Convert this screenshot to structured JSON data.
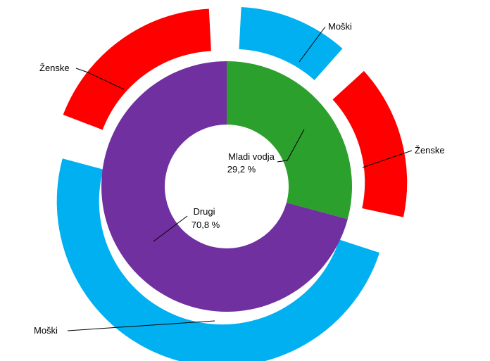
{
  "chart_data": {
    "type": "pie",
    "variant": "nested-donut",
    "inner": {
      "slices": [
        {
          "label": "Mladi vodja",
          "value": 29.2,
          "value_label": "29,2 %",
          "color": "#2ca02c"
        },
        {
          "label": "Drugi",
          "value": 70.8,
          "value_label": "70,8 %",
          "color": "#7030a0"
        }
      ]
    },
    "outer": {
      "slices": [
        {
          "label": "Moški",
          "value": 12.4,
          "color": "#00b0f0",
          "parent": "Mladi vodja"
        },
        {
          "label": "Ženske",
          "value": 16.8,
          "color": "#ff0000",
          "parent": "Mladi vodja"
        },
        {
          "label": "Moški",
          "value": 50.8,
          "color": "#00b0f0",
          "parent": "Drugi"
        },
        {
          "label": "Ženske",
          "value": 20.0,
          "color": "#ff0000",
          "parent": "Drugi"
        }
      ]
    }
  }
}
